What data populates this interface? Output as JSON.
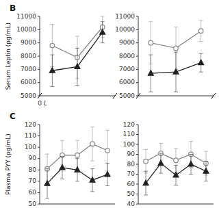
{
  "chart_data": [
    {
      "type": "line",
      "title": "B",
      "y_label": "Serum Leptin (pg/mL)",
      "annotations": [
        "0",
        "L"
      ],
      "x": [
        1,
        2,
        3
      ],
      "xlim": [
        0.5,
        3.5
      ],
      "xticks": [],
      "tick_labels": "y",
      "ylim": [
        5000,
        11000
      ],
      "yticks": [
        5000,
        6000,
        7000,
        8000,
        9000,
        10000,
        11000
      ],
      "series": [
        {
          "color": "#888888",
          "marker": "open-circle",
          "values": [
            8800,
            7900,
            10200
          ],
          "errors": [
            1600,
            1600,
            800
          ]
        },
        {
          "color": "#222222",
          "marker": "triangle",
          "values": [
            6900,
            7200,
            9800
          ],
          "errors": [
            1200,
            1400,
            800
          ]
        }
      ]
    },
    {
      "type": "line",
      "x": [
        1,
        2,
        3
      ],
      "xlim": [
        0.5,
        3.5
      ],
      "xticks": [],
      "tick_labels": "y",
      "ylim": [
        5000,
        11000
      ],
      "yticks": [
        5000,
        6000,
        7000,
        8000,
        9000,
        10000,
        11000
      ],
      "series": [
        {
          "color": "#888888",
          "marker": "open-circle",
          "values": [
            9000,
            8600,
            9900
          ],
          "errors": [
            1600,
            1600,
            800
          ]
        },
        {
          "color": "#222222",
          "marker": "triangle",
          "values": [
            6700,
            6800,
            7500
          ],
          "errors": [
            1400,
            1500,
            700
          ]
        }
      ]
    },
    {
      "type": "line",
      "title": "C",
      "y_label": "Plasma PYY (pg/mL)",
      "x": [
        1,
        2,
        3,
        4,
        5
      ],
      "xlim": [
        0.5,
        5.5
      ],
      "xticks": [],
      "tick_labels": "y",
      "ylim": [
        50,
        120
      ],
      "yticks": [
        50,
        60,
        70,
        80,
        90,
        100,
        110,
        120
      ],
      "series": [
        {
          "color": "#888888",
          "marker": "open-circle",
          "values": [
            81,
            93,
            93,
            103,
            97
          ],
          "errors": [
            13,
            13,
            13,
            15,
            18
          ]
        },
        {
          "color": "#222222",
          "marker": "triangle",
          "values": [
            68,
            82,
            80,
            71,
            76
          ],
          "errors": [
            13,
            10,
            10,
            10,
            10
          ]
        }
      ]
    },
    {
      "type": "line",
      "x": [
        1,
        2,
        3,
        4,
        5
      ],
      "xlim": [
        0.5,
        5.5
      ],
      "xticks": [],
      "tick_labels": "y",
      "ylim": [
        40,
        120
      ],
      "yticks": [
        40,
        50,
        60,
        70,
        80,
        90,
        100,
        110,
        120
      ],
      "series": [
        {
          "color": "#888888",
          "marker": "open-circle",
          "values": [
            83,
            91,
            84,
            90,
            81
          ],
          "errors": [
            12,
            10,
            12,
            13,
            12
          ]
        },
        {
          "color": "#222222",
          "marker": "triangle",
          "values": [
            61,
            81,
            69,
            80,
            73
          ],
          "errors": [
            12,
            10,
            10,
            10,
            10
          ]
        }
      ]
    }
  ]
}
